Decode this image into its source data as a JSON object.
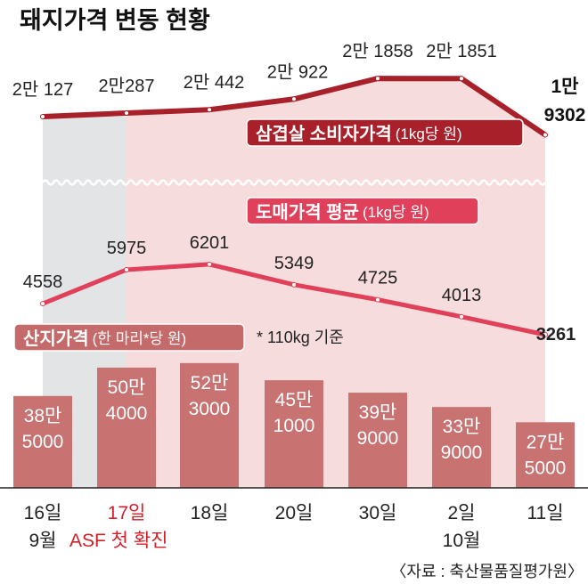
{
  "chart_data": {
    "type": "bar+line",
    "title": "돼지가격 변동 현황",
    "categories": [
      "16일",
      "17일",
      "18일",
      "20일",
      "30일",
      "2일",
      "11일"
    ],
    "months": [
      {
        "label": "9월",
        "under": 0
      },
      {
        "label": "10월",
        "under": 5
      }
    ],
    "annotation": "ASF 첫 확진",
    "annotation_index": 1,
    "series": [
      {
        "name": "삼겹살 소비자가격",
        "unit": "(1kg당 원)",
        "type": "line",
        "values": [
          20127,
          20287,
          20442,
          20922,
          21858,
          21851,
          19302
        ],
        "labels": [
          "2만 127",
          "2만287",
          "2만 442",
          "2만 922",
          "2만 1858",
          "2만 1851",
          "1만 9302"
        ],
        "color": "#a8202a"
      },
      {
        "name": "도매가격 평균",
        "unit": "(1kg당 원)",
        "type": "line",
        "values": [
          4558,
          5975,
          6201,
          5349,
          4725,
          4013,
          3261
        ],
        "labels": [
          "4558",
          "5975",
          "6201",
          "5349",
          "4725",
          "4013",
          "3261"
        ],
        "color": "#e0405a"
      },
      {
        "name": "산지가격",
        "unit": "(한 마리*당 원)",
        "type": "bar",
        "values": [
          385000,
          504000,
          523000,
          451000,
          399000,
          339000,
          275000
        ],
        "labels": [
          [
            "38만",
            "5000"
          ],
          [
            "50만",
            "4000"
          ],
          [
            "52만",
            "3000"
          ],
          [
            "45만",
            "1000"
          ],
          [
            "39만",
            "9000"
          ],
          [
            "33만",
            "9000"
          ],
          [
            "27만",
            "5000"
          ]
        ],
        "color": "#c87272"
      }
    ],
    "footnote": "* 110kg 기준",
    "source": "〈자료 : 축산물품질평가원〉"
  },
  "colors": {
    "shade_gray": "#e3e4e6",
    "shade_pink": "#f6dcdc",
    "annotation": "#d0202a"
  }
}
